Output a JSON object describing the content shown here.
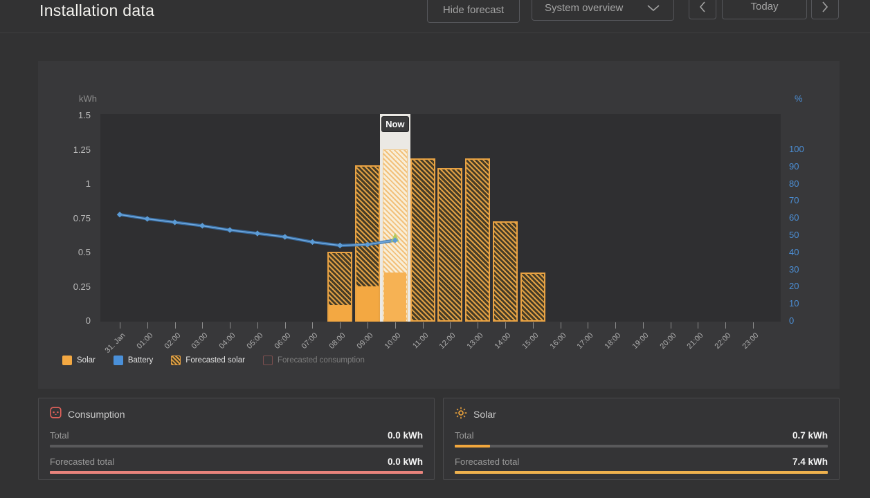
{
  "header": {
    "title": "Installation data",
    "hide_forecast_label": "Hide forecast",
    "view_selector_value": "System overview",
    "today_label": "Today",
    "prev_icon": "chevron-left",
    "next_icon": "chevron-right",
    "dropdown_icon": "chevron-down"
  },
  "chart_data": {
    "type": "bar",
    "now_label": "Now",
    "now_index": 10,
    "categories": [
      "31. Jan",
      "01:00",
      "02:00",
      "03:00",
      "04:00",
      "05:00",
      "06:00",
      "07:00",
      "08:00",
      "09:00",
      "10:00",
      "11:00",
      "12:00",
      "13:00",
      "14:00",
      "15:00",
      "16:00",
      "17:00",
      "18:00",
      "19:00",
      "20:00",
      "21:00",
      "22:00",
      "23:00"
    ],
    "left_axis": {
      "label": "kWh",
      "ticks": [
        "0",
        "0.25",
        "0.5",
        "0.75",
        "1",
        "1.25",
        "1.5"
      ],
      "range": [
        0,
        1.5
      ]
    },
    "right_axis": {
      "label": "%",
      "ticks": [
        "0",
        "10",
        "20",
        "30",
        "40",
        "50",
        "60",
        "70",
        "80",
        "90",
        "100"
      ],
      "range": [
        0,
        100
      ],
      "color": "#4c8fd6"
    },
    "series": [
      {
        "name": "Solar",
        "type": "bar",
        "unit": "kWh",
        "color": "#f3a842",
        "values": [
          null,
          null,
          null,
          null,
          null,
          null,
          null,
          null,
          0.12,
          0.26,
          0.36,
          null,
          null,
          null,
          null,
          null,
          null,
          null,
          null,
          null,
          null,
          null,
          null,
          null
        ]
      },
      {
        "name": "Forecasted solar",
        "type": "bar-hatched",
        "unit": "kWh",
        "color": "#e2a145",
        "values": [
          null,
          null,
          null,
          null,
          null,
          null,
          null,
          null,
          0.51,
          1.14,
          1.26,
          1.19,
          1.12,
          1.19,
          0.73,
          0.36,
          null,
          null,
          null,
          null,
          null,
          null,
          null,
          null
        ]
      },
      {
        "name": "Battery",
        "type": "line",
        "unit": "%",
        "color": "#4a90d9",
        "end_marker": "green-up-arrow",
        "values": [
          62,
          59.5,
          57.5,
          55.5,
          53,
          51,
          49,
          46,
          44,
          44.5,
          47,
          null,
          null,
          null,
          null,
          null,
          null,
          null,
          null,
          null,
          null,
          null,
          null,
          null
        ]
      }
    ],
    "legend": [
      {
        "label": "Solar",
        "swatch": "solid-orange",
        "enabled": true
      },
      {
        "label": "Battery",
        "swatch": "solid-blue",
        "enabled": true
      },
      {
        "label": "Forecasted solar",
        "swatch": "hatched-orange",
        "enabled": true
      },
      {
        "label": "Forecasted consumption",
        "swatch": "outline-red",
        "enabled": false
      }
    ],
    "grid": false,
    "legend_position": "bottom-left"
  },
  "cards": [
    {
      "id": "consumption",
      "title": "Consumption",
      "icon": "outlet-icon",
      "accent": "#e0615a",
      "rows": [
        {
          "label": "Total",
          "value": "0.0 kWh",
          "fill_pct": 0,
          "fill_color": "#e0615a"
        },
        {
          "label": "Forecasted total",
          "value": "0.0 kWh",
          "fill_pct": 100,
          "fill_color": "#e8837c"
        }
      ]
    },
    {
      "id": "solar",
      "title": "Solar",
      "icon": "sun-icon",
      "accent": "#f2a73d",
      "rows": [
        {
          "label": "Total",
          "value": "0.7 kWh",
          "fill_pct": 9.5,
          "fill_color": "#f2a73d"
        },
        {
          "label": "Forecasted total",
          "value": "7.4 kWh",
          "fill_pct": 100,
          "fill_color": "#eeb14e"
        }
      ]
    }
  ]
}
